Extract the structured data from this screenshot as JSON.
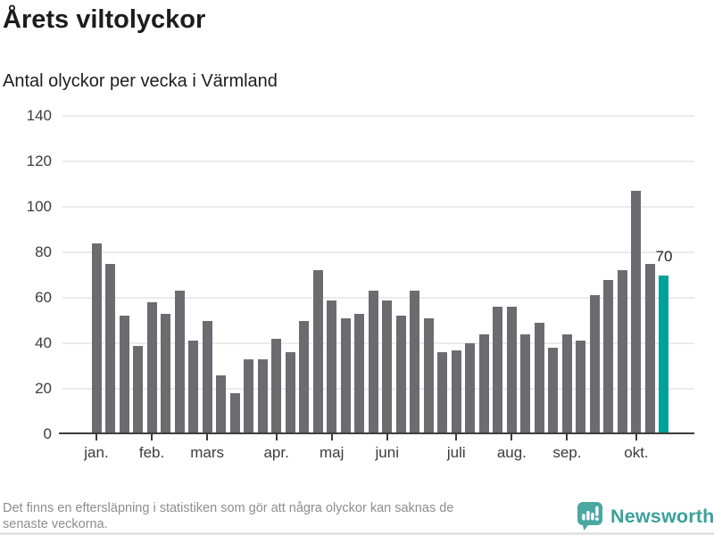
{
  "header": {
    "title": "Årets viltolyckor",
    "subtitle": "Antal olyckor per vecka i Värmland"
  },
  "chart_data": {
    "type": "bar",
    "title": "Årets viltolyckor",
    "subtitle": "Antal olyckor per vecka i Värmland",
    "x_unit": "vecka (week of year)",
    "values": [
      84,
      75,
      52,
      39,
      58,
      53,
      63,
      41,
      50,
      26,
      18,
      33,
      33,
      42,
      36,
      50,
      72,
      59,
      51,
      53,
      63,
      59,
      52,
      63,
      51,
      36,
      37,
      40,
      44,
      56,
      56,
      44,
      49,
      38,
      44,
      41,
      61,
      68,
      72,
      107,
      75,
      70
    ],
    "highlight_index": 41,
    "highlight_label": "70",
    "y_ticks": [
      0,
      20,
      40,
      60,
      80,
      100,
      120,
      140
    ],
    "ylim": [
      0,
      140
    ],
    "grid": true,
    "month_ticks": [
      {
        "index": 0,
        "label": "jan."
      },
      {
        "index": 4,
        "label": "feb."
      },
      {
        "index": 8,
        "label": "mars"
      },
      {
        "index": 13,
        "label": "apr."
      },
      {
        "index": 17,
        "label": "maj"
      },
      {
        "index": 21,
        "label": "juni"
      },
      {
        "index": 26,
        "label": "juli"
      },
      {
        "index": 30,
        "label": "aug."
      },
      {
        "index": 34,
        "label": "sep."
      },
      {
        "index": 39,
        "label": "okt."
      }
    ],
    "colors": {
      "bar": "#6b6b70",
      "highlight": "#00a19a",
      "grid": "#ebebeb",
      "axis": "#3d3d3d",
      "tick_text": "#3c3c3c"
    }
  },
  "footer": {
    "note_lines": [
      "Det finns en eftersläpning i statistiken som gör att några olyckor kan saknas de",
      "senaste veckorna."
    ],
    "brand": "Newsworthy",
    "brand_color": "#3aa19b",
    "logo_color": "#4aa7a1"
  }
}
